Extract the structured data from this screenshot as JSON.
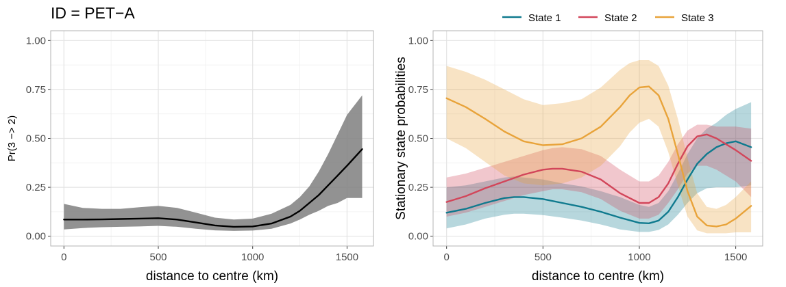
{
  "chart_data": [
    {
      "type": "line",
      "title": "ID = PET−A",
      "xlabel": "distance to centre (km)",
      "ylabel": "Pr(3 −> 2)",
      "xlim": [
        -70,
        1640
      ],
      "ylim": [
        -0.05,
        1.05
      ],
      "xticks": [
        "0",
        "500",
        "1000",
        "1500"
      ],
      "yticks": [
        "0.00",
        "0.25",
        "0.50",
        "0.75",
        "1.00"
      ],
      "grid": true,
      "line_color": "#000000",
      "band_color": "#7f7f7f",
      "series": [
        {
          "x": [
            0,
            100,
            200,
            300,
            400,
            500,
            600,
            700,
            800,
            900,
            1000,
            1100,
            1200,
            1250,
            1300,
            1350,
            1400,
            1450,
            1500,
            1580
          ],
          "y": [
            0.085,
            0.085,
            0.086,
            0.088,
            0.09,
            0.092,
            0.085,
            0.07,
            0.055,
            0.048,
            0.05,
            0.065,
            0.1,
            0.13,
            0.17,
            0.21,
            0.26,
            0.31,
            0.36,
            0.445
          ],
          "lower": [
            0.035,
            0.042,
            0.046,
            0.048,
            0.05,
            0.053,
            0.048,
            0.038,
            0.03,
            0.027,
            0.029,
            0.038,
            0.065,
            0.085,
            0.11,
            0.13,
            0.155,
            0.17,
            0.195,
            0.195
          ],
          "upper": [
            0.165,
            0.145,
            0.14,
            0.14,
            0.148,
            0.155,
            0.145,
            0.12,
            0.095,
            0.085,
            0.09,
            0.115,
            0.16,
            0.2,
            0.255,
            0.33,
            0.42,
            0.52,
            0.62,
            0.72
          ]
        }
      ]
    },
    {
      "type": "line",
      "xlabel": "distance to centre (km)",
      "ylabel": "Stationary state probabilities",
      "xlim": [
        -70,
        1640
      ],
      "ylim": [
        -0.05,
        1.05
      ],
      "xticks": [
        "0",
        "500",
        "1000",
        "1500"
      ],
      "yticks": [
        "0.00",
        "0.25",
        "0.50",
        "0.75",
        "1.00"
      ],
      "grid": true,
      "legend_position": "top",
      "series": [
        {
          "name": "State 1",
          "color": "#0f7a8e",
          "x": [
            0,
            100,
            200,
            300,
            350,
            400,
            500,
            600,
            700,
            800,
            900,
            1000,
            1050,
            1100,
            1150,
            1200,
            1250,
            1300,
            1350,
            1400,
            1450,
            1500,
            1580
          ],
          "y": [
            0.12,
            0.14,
            0.17,
            0.195,
            0.2,
            0.2,
            0.19,
            0.17,
            0.15,
            0.125,
            0.095,
            0.068,
            0.066,
            0.08,
            0.125,
            0.2,
            0.29,
            0.37,
            0.42,
            0.455,
            0.475,
            0.485,
            0.455
          ],
          "lower": [
            0.04,
            0.06,
            0.09,
            0.11,
            0.115,
            0.115,
            0.108,
            0.095,
            0.08,
            0.06,
            0.035,
            0.022,
            0.022,
            0.032,
            0.06,
            0.11,
            0.17,
            0.22,
            0.245,
            0.25,
            0.25,
            0.25,
            0.26
          ],
          "upper": [
            0.25,
            0.26,
            0.28,
            0.3,
            0.305,
            0.3,
            0.29,
            0.27,
            0.255,
            0.23,
            0.2,
            0.16,
            0.15,
            0.17,
            0.23,
            0.32,
            0.42,
            0.5,
            0.55,
            0.58,
            0.62,
            0.65,
            0.685
          ]
        },
        {
          "name": "State 2",
          "color": "#d2465a",
          "x": [
            0,
            100,
            200,
            300,
            400,
            500,
            550,
            600,
            700,
            800,
            900,
            1000,
            1050,
            1100,
            1150,
            1200,
            1250,
            1300,
            1350,
            1400,
            1500,
            1580
          ],
          "y": [
            0.175,
            0.205,
            0.245,
            0.28,
            0.315,
            0.34,
            0.345,
            0.345,
            0.33,
            0.29,
            0.22,
            0.17,
            0.17,
            0.2,
            0.27,
            0.37,
            0.46,
            0.51,
            0.52,
            0.5,
            0.44,
            0.385
          ],
          "lower": [
            0.1,
            0.12,
            0.15,
            0.18,
            0.21,
            0.23,
            0.24,
            0.24,
            0.225,
            0.19,
            0.13,
            0.09,
            0.09,
            0.11,
            0.17,
            0.24,
            0.32,
            0.36,
            0.36,
            0.34,
            0.28,
            0.2
          ],
          "upper": [
            0.3,
            0.32,
            0.35,
            0.38,
            0.41,
            0.44,
            0.45,
            0.455,
            0.445,
            0.41,
            0.34,
            0.28,
            0.28,
            0.31,
            0.38,
            0.47,
            0.54,
            0.57,
            0.57,
            0.56,
            0.56,
            0.55
          ]
        },
        {
          "name": "State 3",
          "color": "#e8a33a",
          "x": [
            0,
            100,
            200,
            300,
            400,
            500,
            600,
            700,
            800,
            900,
            950,
            1000,
            1050,
            1100,
            1150,
            1200,
            1250,
            1300,
            1350,
            1400,
            1450,
            1500,
            1580
          ],
          "y": [
            0.705,
            0.66,
            0.6,
            0.535,
            0.485,
            0.465,
            0.47,
            0.5,
            0.56,
            0.66,
            0.72,
            0.76,
            0.765,
            0.72,
            0.6,
            0.42,
            0.23,
            0.1,
            0.055,
            0.05,
            0.06,
            0.09,
            0.155
          ],
          "lower": [
            0.5,
            0.45,
            0.38,
            0.31,
            0.27,
            0.26,
            0.27,
            0.3,
            0.36,
            0.46,
            0.53,
            0.58,
            0.6,
            0.56,
            0.43,
            0.26,
            0.1,
            0.03,
            0.015,
            0.015,
            0.015,
            0.02,
            0.02
          ],
          "upper": [
            0.87,
            0.84,
            0.8,
            0.75,
            0.7,
            0.67,
            0.68,
            0.7,
            0.76,
            0.85,
            0.885,
            0.9,
            0.9,
            0.87,
            0.77,
            0.6,
            0.4,
            0.22,
            0.15,
            0.14,
            0.16,
            0.2,
            0.28
          ]
        }
      ]
    }
  ]
}
